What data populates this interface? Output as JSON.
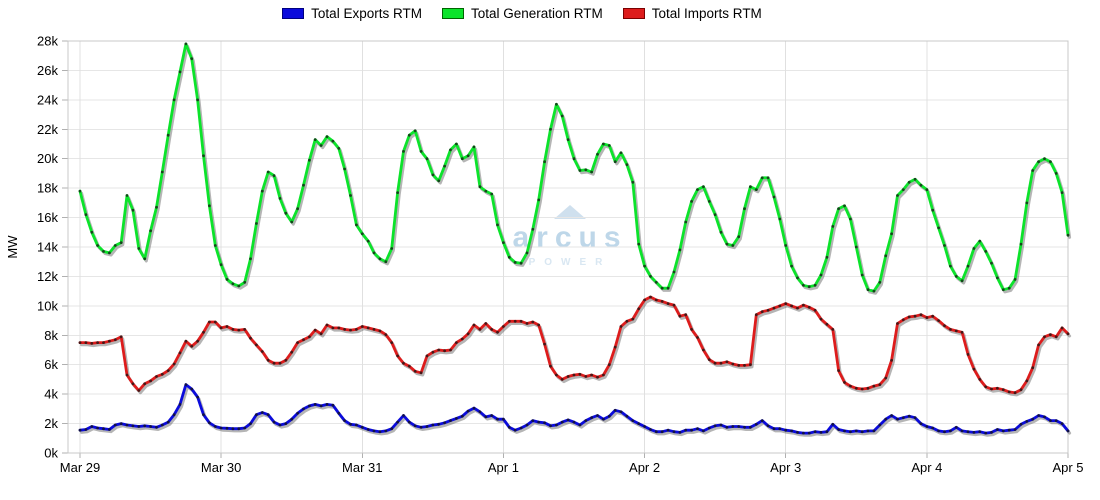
{
  "legend": [
    {
      "label": "Total Exports RTM",
      "color": "#0b0bdc",
      "border": "#000080"
    },
    {
      "label": "Total Generation RTM",
      "color": "#0ce32b",
      "border": "#006400"
    },
    {
      "label": "Total Imports RTM",
      "color": "#dd1c1c",
      "border": "#7a0000"
    }
  ],
  "watermark": {
    "brand": "arcus",
    "sub": "POWER"
  },
  "y_axis": {
    "title": "MW",
    "tick_labels": [
      "0k",
      "2k",
      "4k",
      "6k",
      "8k",
      "10k",
      "12k",
      "14k",
      "16k",
      "18k",
      "20k",
      "22k",
      "24k",
      "26k",
      "28k"
    ]
  },
  "x_axis": {
    "tick_labels": [
      "Mar 29",
      "Mar 30",
      "Mar 31",
      "Apr 1",
      "Apr 2",
      "Apr 3",
      "Apr 4",
      "Apr 5"
    ]
  },
  "chart_data": {
    "type": "line",
    "title": "",
    "ylabel": "MW",
    "ylim": [
      0,
      28000
    ],
    "y_step": 2000,
    "grid": true,
    "legend_position": "top-center",
    "x_unit": "hourly samples, Mar 29 00:00 through Apr 5 00:00 (169 points)",
    "x_tick_labels": [
      "Mar 29",
      "Mar 30",
      "Mar 31",
      "Apr 1",
      "Apr 2",
      "Apr 3",
      "Apr 4",
      "Apr 5"
    ],
    "series": [
      {
        "name": "Total Exports RTM",
        "color": "#0b0bdc",
        "values": [
          1550,
          1600,
          1800,
          1700,
          1650,
          1600,
          1900,
          2000,
          1900,
          1850,
          1800,
          1850,
          1800,
          1750,
          1900,
          2100,
          2600,
          3300,
          4650,
          4350,
          3800,
          2600,
          2050,
          1800,
          1700,
          1680,
          1650,
          1650,
          1700,
          2000,
          2600,
          2750,
          2600,
          2100,
          1900,
          2000,
          2300,
          2700,
          3000,
          3200,
          3300,
          3200,
          3300,
          3250,
          2700,
          2200,
          1950,
          1900,
          1750,
          1600,
          1500,
          1450,
          1500,
          1650,
          2100,
          2550,
          2100,
          1850,
          1750,
          1800,
          1900,
          1950,
          2050,
          2200,
          2350,
          2500,
          2850,
          3050,
          2800,
          2450,
          2550,
          2300,
          2300,
          1750,
          1550,
          1700,
          1900,
          2200,
          2100,
          2050,
          1850,
          1900,
          2100,
          2250,
          2100,
          1900,
          2200,
          2400,
          2550,
          2300,
          2500,
          2900,
          2800,
          2500,
          2200,
          2000,
          1800,
          1600,
          1450,
          1450,
          1550,
          1450,
          1400,
          1550,
          1550,
          1650,
          1500,
          1700,
          1850,
          1900,
          1750,
          1800,
          1800,
          1750,
          1750,
          1950,
          2200,
          1850,
          1650,
          1650,
          1550,
          1500,
          1400,
          1350,
          1350,
          1450,
          1400,
          1450,
          1950,
          1600,
          1500,
          1450,
          1500,
          1450,
          1500,
          1500,
          1900,
          2300,
          2550,
          2300,
          2400,
          2500,
          2400,
          2000,
          1800,
          1700,
          1500,
          1450,
          1500,
          1750,
          1500,
          1450,
          1400,
          1450,
          1350,
          1400,
          1600,
          1500,
          1550,
          1600,
          1950,
          2150,
          2300,
          2550,
          2450,
          2200,
          2200,
          2000,
          1500
        ]
      },
      {
        "name": "Total Generation RTM",
        "color": "#0ce32b",
        "values": [
          17800,
          16200,
          15000,
          14100,
          13700,
          13600,
          14100,
          14300,
          17500,
          16500,
          13900,
          13200,
          15100,
          16700,
          19100,
          21600,
          24000,
          25900,
          27800,
          26800,
          24000,
          20200,
          16800,
          14100,
          12800,
          11800,
          11500,
          11350,
          11600,
          13200,
          15600,
          17800,
          19100,
          18850,
          17300,
          16300,
          15700,
          16600,
          18200,
          19900,
          21300,
          20900,
          21500,
          21200,
          20700,
          19300,
          17500,
          15500,
          14900,
          14400,
          13600,
          13200,
          13000,
          13900,
          17700,
          20500,
          21600,
          21900,
          20500,
          20000,
          18900,
          18500,
          19500,
          20600,
          21000,
          20000,
          20200,
          20800,
          18100,
          17800,
          17600,
          15500,
          14300,
          13300,
          12950,
          12900,
          13600,
          15200,
          17200,
          19800,
          22000,
          23700,
          22900,
          21300,
          20000,
          19200,
          19250,
          19100,
          20300,
          21000,
          20900,
          19800,
          20400,
          19600,
          18400,
          14200,
          12700,
          12000,
          11600,
          11200,
          11200,
          12300,
          13800,
          15700,
          17100,
          17900,
          18100,
          17100,
          16200,
          15000,
          14200,
          14100,
          14700,
          16600,
          18100,
          17900,
          18700,
          18700,
          17400,
          15900,
          14100,
          12700,
          11900,
          11400,
          11300,
          11400,
          12100,
          13300,
          15400,
          16600,
          16800,
          15900,
          14000,
          12100,
          11100,
          11000,
          11600,
          13400,
          14900,
          17500,
          17900,
          18400,
          18600,
          18200,
          17900,
          16500,
          15300,
          14100,
          12700,
          12000,
          11700,
          12700,
          13900,
          14400,
          13700,
          12900,
          11900,
          11100,
          11200,
          11800,
          14200,
          17000,
          19200,
          19800,
          20000,
          19800,
          19000,
          17700,
          14800
        ]
      },
      {
        "name": "Total Imports RTM",
        "color": "#dd1c1c",
        "values": [
          7500,
          7500,
          7450,
          7500,
          7500,
          7600,
          7700,
          7900,
          5300,
          4700,
          4250,
          4700,
          4900,
          5200,
          5350,
          5600,
          6050,
          6800,
          7600,
          7250,
          7600,
          8200,
          8900,
          8900,
          8500,
          8600,
          8400,
          8350,
          8400,
          7800,
          7350,
          6900,
          6300,
          6100,
          6100,
          6300,
          6850,
          7500,
          7700,
          7900,
          8350,
          8100,
          8700,
          8500,
          8500,
          8400,
          8350,
          8400,
          8600,
          8500,
          8400,
          8300,
          8050,
          7500,
          6600,
          6100,
          5900,
          5550,
          5450,
          6600,
          6850,
          7000,
          6950,
          7000,
          7500,
          7750,
          8100,
          8700,
          8400,
          8800,
          8400,
          8200,
          8600,
          8950,
          8950,
          8950,
          8800,
          8900,
          8700,
          7400,
          5900,
          5300,
          5000,
          5200,
          5300,
          5350,
          5200,
          5300,
          5150,
          5300,
          6000,
          7200,
          8600,
          8950,
          9100,
          9800,
          10400,
          10600,
          10400,
          10300,
          10150,
          10050,
          9300,
          9400,
          8400,
          7850,
          7000,
          6350,
          6100,
          6100,
          6200,
          6050,
          5950,
          5950,
          6000,
          9400,
          9600,
          9700,
          9850,
          10000,
          10150,
          10000,
          9850,
          10050,
          9900,
          9700,
          9100,
          8750,
          8400,
          5600,
          4800,
          4550,
          4400,
          4350,
          4400,
          4550,
          4650,
          5100,
          6300,
          8800,
          9050,
          9250,
          9300,
          9400,
          9200,
          9300,
          9000,
          8650,
          8400,
          8300,
          8200,
          6700,
          5700,
          5000,
          4500,
          4350,
          4400,
          4300,
          4150,
          4100,
          4300,
          4900,
          5800,
          7350,
          7900,
          8050,
          7900,
          8500,
          8100
        ]
      }
    ]
  }
}
